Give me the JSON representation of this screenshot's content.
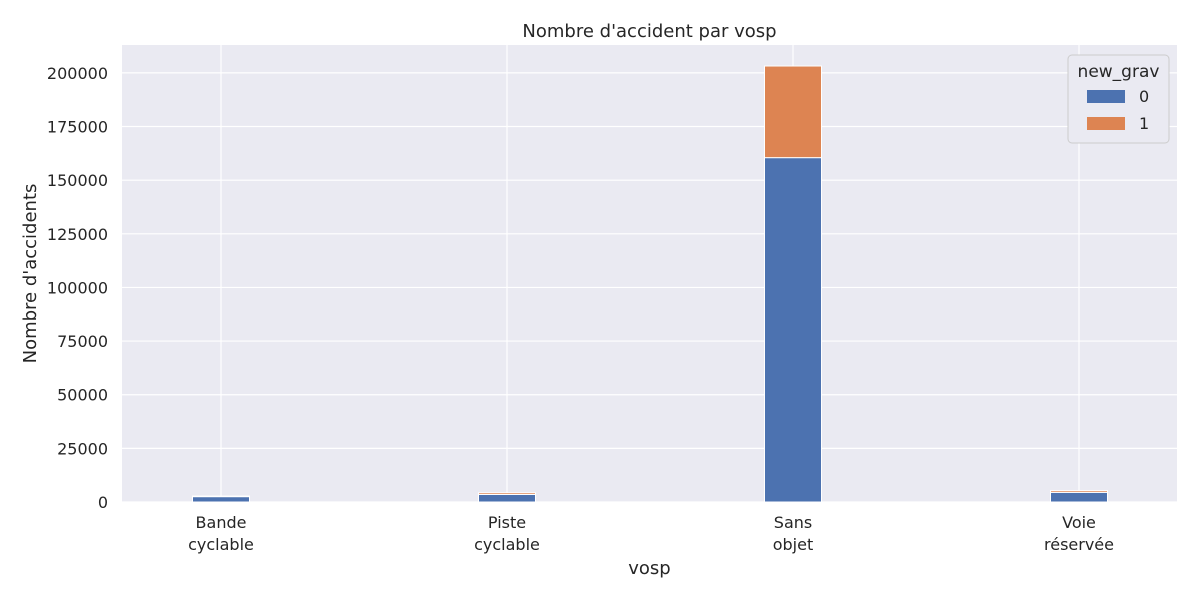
{
  "chart_data": {
    "type": "bar",
    "stacked": true,
    "title": "Nombre d'accident par vosp",
    "xlabel": "vosp",
    "ylabel": "Nombre d'accidents",
    "categories": [
      [
        "Bande",
        "cyclable"
      ],
      [
        "Piste",
        "cyclable"
      ],
      [
        "Sans",
        "objet"
      ],
      [
        "Voie",
        "réservée"
      ]
    ],
    "series": [
      {
        "name": "0",
        "color": "#4c72b0",
        "values": [
          2500,
          3500,
          160500,
          4500
        ]
      },
      {
        "name": "1",
        "color": "#dd8452",
        "values": [
          300,
          800,
          42700,
          800
        ]
      }
    ],
    "ylim": [
      0,
      213000
    ],
    "yticks": [
      0,
      25000,
      50000,
      75000,
      100000,
      125000,
      150000,
      175000,
      200000
    ],
    "grid": true,
    "legend": {
      "title": "new_grav",
      "placement": "top-right"
    },
    "background_color": "#eaeaf2",
    "grid_color": "#ffffff"
  }
}
